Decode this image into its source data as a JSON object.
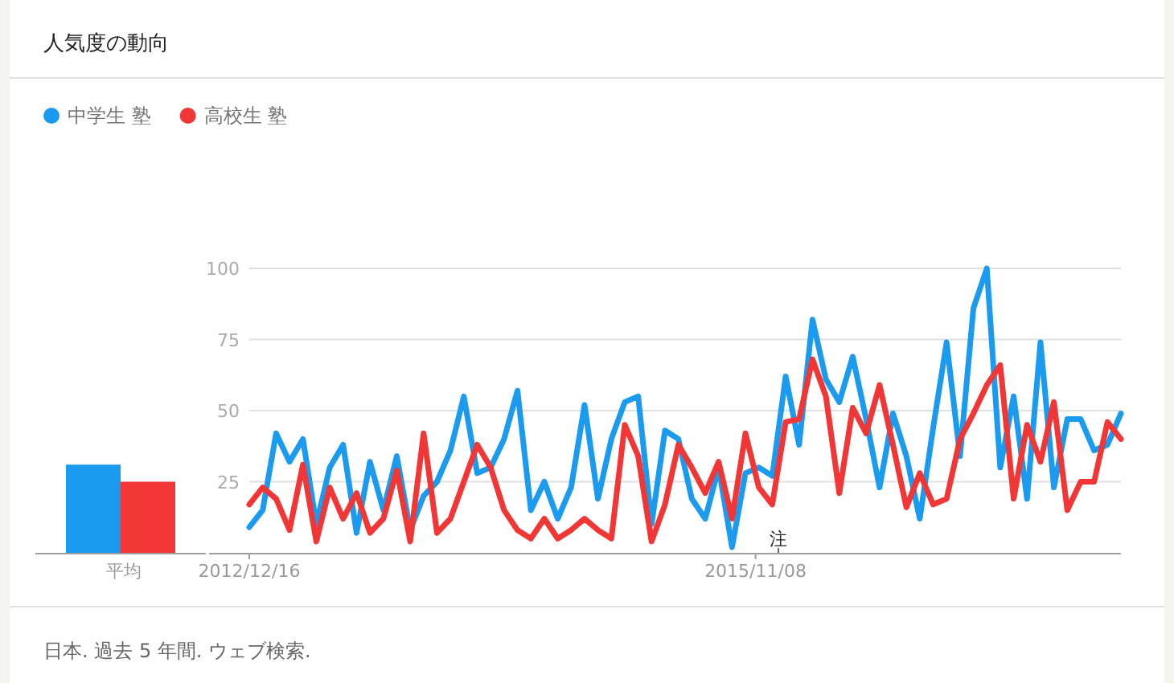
{
  "chart_data": [
    {
      "type": "bar",
      "title": "人気度の動向",
      "categories": [
        "平均"
      ],
      "ylim": [
        0,
        100
      ],
      "tick_labels": "x",
      "series": [
        {
          "color": "#1a9bef",
          "values": [
            31
          ]
        },
        {
          "color": "#f23535",
          "values": [
            25
          ]
        }
      ]
    },
    {
      "type": "line",
      "legend": "top left",
      "grid": "y",
      "xlim": [
        "2012-12-16",
        "2017-12-10"
      ],
      "ylim": [
        0,
        100
      ],
      "yticks": [
        25,
        50,
        75,
        100
      ],
      "xticks": [
        {
          "value": "2012-12-16",
          "label": "2012/12/16"
        },
        {
          "value": "2015-11-08",
          "label": "2015/11/08"
        }
      ],
      "annotations": [
        "注",
        "日本. 過去 5 年間. ウェブ検索."
      ],
      "x": [
        "2012-12-16",
        "2013-01-13",
        "2013-02-10",
        "2013-03-10",
        "2013-04-07",
        "2013-05-05",
        "2013-06-02",
        "2013-06-30",
        "2013-07-28",
        "2013-08-25",
        "2013-09-22",
        "2013-10-20",
        "2013-11-17",
        "2013-12-15",
        "2014-01-12",
        "2014-02-09",
        "2014-03-09",
        "2014-04-06",
        "2014-05-04",
        "2014-06-01",
        "2014-06-29",
        "2014-07-27",
        "2014-08-24",
        "2014-09-21",
        "2014-10-19",
        "2014-11-16",
        "2014-12-14",
        "2015-01-11",
        "2015-02-08",
        "2015-03-08",
        "2015-04-05",
        "2015-05-03",
        "2015-05-31",
        "2015-06-28",
        "2015-07-26",
        "2015-08-23",
        "2015-09-20",
        "2015-10-18",
        "2015-11-15",
        "2015-12-13",
        "2016-01-10",
        "2016-02-07",
        "2016-03-06",
        "2016-04-03",
        "2016-05-01",
        "2016-05-29",
        "2016-06-26",
        "2016-07-24",
        "2016-08-21",
        "2016-09-18",
        "2016-10-16",
        "2016-11-13",
        "2016-12-11",
        "2017-01-08",
        "2017-02-05",
        "2017-03-05",
        "2017-04-02",
        "2017-04-30",
        "2017-05-28",
        "2017-06-25",
        "2017-07-23",
        "2017-08-20",
        "2017-09-17",
        "2017-10-15",
        "2017-11-12",
        "2017-12-10"
      ],
      "series": [
        {
          "name": "中学生 塾",
          "color": "#1a9bef",
          "values": [
            9,
            15,
            42,
            32,
            40,
            10,
            30,
            38,
            7,
            32,
            15,
            34,
            8,
            20,
            25,
            36,
            55,
            28,
            30,
            40,
            57,
            15,
            25,
            12,
            23,
            52,
            19,
            40,
            53,
            55,
            10,
            43,
            40,
            19,
            12,
            30,
            2,
            28,
            30,
            27,
            62,
            38,
            82,
            61,
            53,
            69,
            47,
            23,
            49,
            34,
            12,
            44,
            74,
            34,
            86,
            100,
            30,
            55,
            19,
            74,
            23,
            47,
            47,
            36,
            38,
            49
          ]
        },
        {
          "name": "高校生 塾",
          "color": "#f23535",
          "values": [
            17,
            23,
            19,
            8,
            31,
            4,
            23,
            12,
            21,
            7,
            12,
            29,
            4,
            42,
            7,
            12,
            25,
            38,
            30,
            15,
            8,
            5,
            12,
            5,
            8,
            12,
            8,
            5,
            45,
            34,
            4,
            17,
            38,
            30,
            21,
            32,
            12,
            42,
            23,
            17,
            46,
            47,
            68,
            55,
            21,
            51,
            42,
            59,
            38,
            16,
            28,
            17,
            19,
            40,
            49,
            59,
            66,
            19,
            45,
            32,
            53,
            15,
            25,
            25,
            46,
            40
          ]
        }
      ]
    }
  ]
}
